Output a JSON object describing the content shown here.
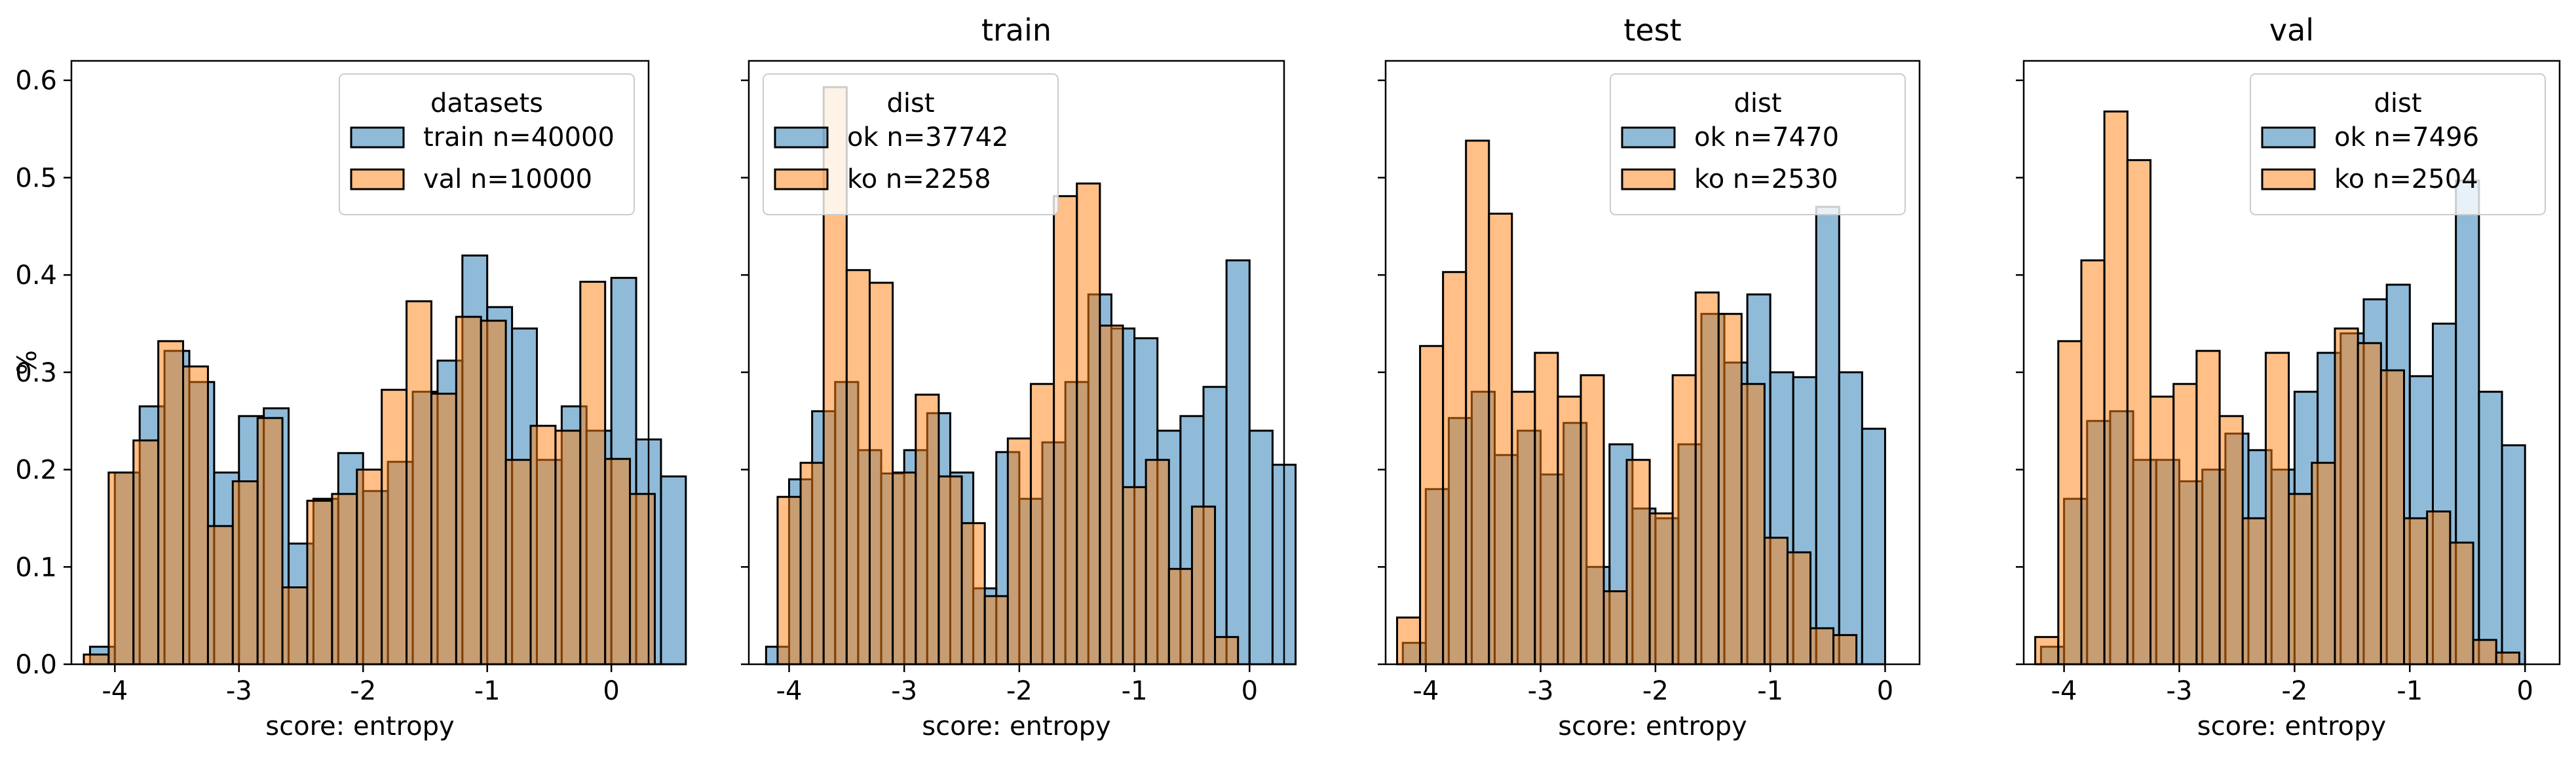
{
  "chart_data": [
    {
      "type": "histogram",
      "title": "",
      "xlabel": "score: entropy",
      "ylabel": "%",
      "xlim": [
        -4.35,
        0.3
      ],
      "ylim": [
        0,
        0.62
      ],
      "xticks": [
        -4,
        -3,
        -2,
        -1,
        0
      ],
      "yticks": [
        0.0,
        0.1,
        0.2,
        0.3,
        0.4,
        0.5,
        0.6
      ],
      "ytick_labels": [
        "0.0",
        "0.1",
        "0.2",
        "0.3",
        "0.4",
        "0.5",
        "0.6"
      ],
      "legend": {
        "title": "datasets",
        "position": "top-right"
      },
      "series": [
        {
          "name": "train n=40000",
          "color": "#1f77b4",
          "x_start": -4.2,
          "width": 0.2,
          "values": [
            0.018,
            0.197,
            0.265,
            0.322,
            0.29,
            0.197,
            0.255,
            0.263,
            0.124,
            0.17,
            0.217,
            0.178,
            0.208,
            0.28,
            0.312,
            0.42,
            0.367,
            0.345,
            0.21,
            0.265,
            0.24,
            0.397,
            0.231,
            0.193
          ]
        },
        {
          "name": "val n=10000",
          "color": "#ff7f0e",
          "x_start": -4.25,
          "width": 0.2,
          "values": [
            0.01,
            0.197,
            0.23,
            0.332,
            0.306,
            0.142,
            0.188,
            0.253,
            0.079,
            0.168,
            0.175,
            0.2,
            0.282,
            0.373,
            0.278,
            0.357,
            0.353,
            0.21,
            0.245,
            0.24,
            0.393,
            0.211,
            0.175
          ]
        }
      ]
    },
    {
      "type": "histogram",
      "title": "train",
      "xlabel": "score: entropy",
      "xlim": [
        -4.35,
        0.3
      ],
      "ylim": [
        0,
        0.62
      ],
      "xticks": [
        -4,
        -3,
        -2,
        -1,
        0
      ],
      "yticks": [
        0.0,
        0.1,
        0.2,
        0.3,
        0.4,
        0.5,
        0.6
      ],
      "legend": {
        "title": "dist",
        "position": "top-left"
      },
      "series": [
        {
          "name": "ok n=37742",
          "color": "#1f77b4",
          "x_start": -4.2,
          "width": 0.2,
          "values": [
            0.018,
            0.19,
            0.26,
            0.29,
            0.22,
            0.196,
            0.22,
            0.258,
            0.197,
            0.078,
            0.218,
            0.17,
            0.228,
            0.29,
            0.38,
            0.345,
            0.335,
            0.24,
            0.255,
            0.285,
            0.415,
            0.24,
            0.205
          ]
        },
        {
          "name": "ko n=2258",
          "color": "#ff7f0e",
          "x_start": -4.1,
          "width": 0.2,
          "values": [
            0.172,
            0.207,
            0.593,
            0.405,
            0.392,
            0.197,
            0.277,
            0.193,
            0.145,
            0.07,
            0.232,
            0.288,
            0.481,
            0.494,
            0.348,
            0.182,
            0.21,
            0.098,
            0.162,
            0.028
          ]
        }
      ]
    },
    {
      "type": "histogram",
      "title": "test",
      "xlabel": "score: entropy",
      "xlim": [
        -4.35,
        0.3
      ],
      "ylim": [
        0,
        0.62
      ],
      "xticks": [
        -4,
        -3,
        -2,
        -1,
        0
      ],
      "yticks": [
        0.0,
        0.1,
        0.2,
        0.3,
        0.4,
        0.5,
        0.6
      ],
      "legend": {
        "title": "dist",
        "position": "top-right"
      },
      "series": [
        {
          "name": "ok n=7470",
          "color": "#1f77b4",
          "x_start": -4.2,
          "width": 0.2,
          "values": [
            0.022,
            0.18,
            0.253,
            0.28,
            0.215,
            0.24,
            0.195,
            0.248,
            0.1,
            0.226,
            0.16,
            0.15,
            0.226,
            0.36,
            0.31,
            0.38,
            0.3,
            0.295,
            0.47,
            0.3,
            0.242
          ]
        },
        {
          "name": "ko n=2530",
          "color": "#ff7f0e",
          "x_start": -4.25,
          "width": 0.2,
          "values": [
            0.048,
            0.327,
            0.403,
            0.538,
            0.463,
            0.28,
            0.32,
            0.275,
            0.297,
            0.075,
            0.21,
            0.155,
            0.297,
            0.382,
            0.36,
            0.288,
            0.13,
            0.115,
            0.037,
            0.03
          ]
        }
      ]
    },
    {
      "type": "histogram",
      "title": "val",
      "xlabel": "score: entropy",
      "xlim": [
        -4.35,
        0.3
      ],
      "ylim": [
        0,
        0.62
      ],
      "xticks": [
        -4,
        -3,
        -2,
        -1,
        0
      ],
      "yticks": [
        0.0,
        0.1,
        0.2,
        0.3,
        0.4,
        0.5,
        0.6
      ],
      "legend": {
        "title": "dist",
        "position": "top-right"
      },
      "series": [
        {
          "name": "ok n=7496",
          "color": "#1f77b4",
          "x_start": -4.2,
          "width": 0.2,
          "values": [
            0.018,
            0.17,
            0.25,
            0.26,
            0.21,
            0.21,
            0.188,
            0.2,
            0.237,
            0.22,
            0.2,
            0.28,
            0.32,
            0.34,
            0.375,
            0.39,
            0.296,
            0.35,
            0.497,
            0.28,
            0.225
          ]
        },
        {
          "name": "ko n=2504",
          "color": "#ff7f0e",
          "x_start": -4.25,
          "width": 0.2,
          "values": [
            0.028,
            0.332,
            0.415,
            0.568,
            0.518,
            0.275,
            0.288,
            0.322,
            0.255,
            0.15,
            0.32,
            0.175,
            0.207,
            0.345,
            0.33,
            0.302,
            0.15,
            0.157,
            0.125,
            0.025,
            0.012
          ]
        }
      ]
    }
  ]
}
